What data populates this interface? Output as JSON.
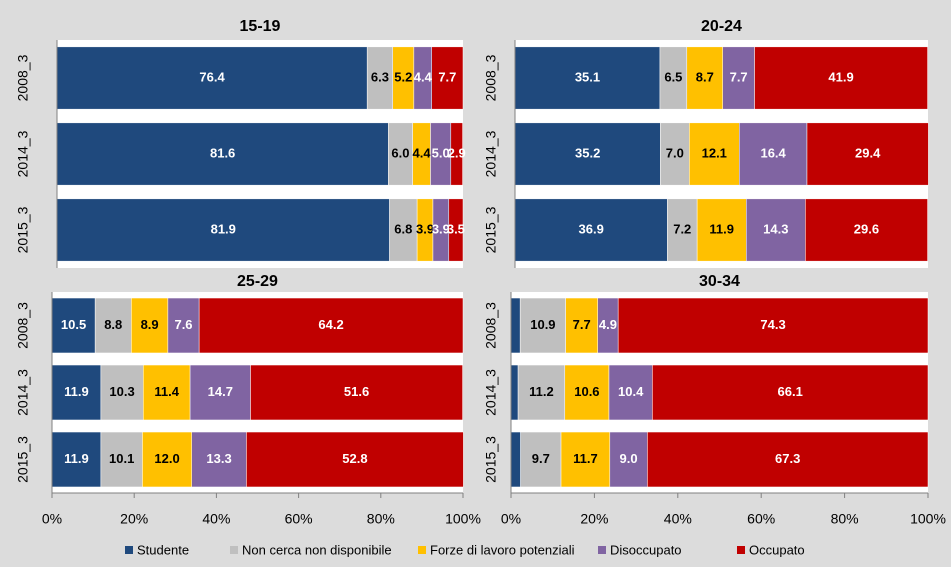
{
  "chart_data": [
    {
      "type": "stacked_barh",
      "title": "15-19",
      "categories": [
        "2008_3",
        "2014_3",
        "2015_3"
      ],
      "xlim": [
        0,
        100
      ],
      "series": [
        {
          "name": "Studente",
          "color": "#1f497d",
          "values": [
            76.4,
            81.6,
            81.9
          ],
          "value_labels": [
            "76.4",
            "81.6",
            "81.9"
          ]
        },
        {
          "name": "Non cerca non disponibile",
          "color": "#bfbfbf",
          "values": [
            6.3,
            6.0,
            6.8
          ],
          "value_labels": [
            "6.3",
            "6.0",
            "6.8"
          ]
        },
        {
          "name": "Forze di lavoro potenziali",
          "color": "#ffc000",
          "values": [
            5.2,
            4.4,
            3.9
          ],
          "value_labels": [
            "5.2",
            "4.4",
            "3.9"
          ]
        },
        {
          "name": "Disoccupato",
          "color": "#8064a2",
          "values": [
            4.4,
            5.0,
            3.9
          ],
          "value_labels": [
            "4.4",
            "5.0",
            "3.9"
          ]
        },
        {
          "name": "Occupato",
          "color": "#c00000",
          "values": [
            7.7,
            2.9,
            3.5
          ],
          "value_labels": [
            "7.7",
            "2.9",
            "3.5"
          ]
        }
      ]
    },
    {
      "type": "stacked_barh",
      "title": "20-24",
      "categories": [
        "2008_3",
        "2014_3",
        "2015_3"
      ],
      "xlim": [
        0,
        100
      ],
      "series": [
        {
          "color": "#1f497d",
          "values": [
            35.1,
            35.2,
            36.9
          ],
          "value_labels": [
            "35.1",
            "35.2",
            "36.9"
          ]
        },
        {
          "color": "#bfbfbf",
          "values": [
            6.5,
            7.0,
            7.2
          ],
          "value_labels": [
            "6.5",
            "7.0",
            "7.2"
          ]
        },
        {
          "color": "#ffc000",
          "values": [
            8.7,
            12.1,
            11.9
          ],
          "value_labels": [
            "8.7",
            "12.1",
            "11.9"
          ]
        },
        {
          "color": "#8064a2",
          "values": [
            7.7,
            16.4,
            14.3
          ],
          "value_labels": [
            "7.7",
            "16.4",
            "14.3"
          ]
        },
        {
          "color": "#c00000",
          "values": [
            41.9,
            29.4,
            29.6
          ],
          "value_labels": [
            "41.9",
            "29.4",
            "29.6"
          ]
        }
      ]
    },
    {
      "type": "stacked_barh",
      "title": "25-29",
      "categories": [
        "2008_3",
        "2014_3",
        "2015_3"
      ],
      "xlim": [
        0,
        100
      ],
      "xticks": [
        {
          "value": 0,
          "label": "0%"
        },
        {
          "value": 20,
          "label": "20%"
        },
        {
          "value": 40,
          "label": "40%"
        },
        {
          "value": 60,
          "label": "60%"
        },
        {
          "value": 80,
          "label": "80%"
        },
        {
          "value": 100,
          "label": "100%"
        }
      ],
      "series": [
        {
          "color": "#1f497d",
          "values": [
            10.5,
            11.9,
            11.9
          ],
          "value_labels": [
            "10.5",
            "11.9",
            "11.9"
          ]
        },
        {
          "color": "#bfbfbf",
          "values": [
            8.8,
            10.3,
            10.1
          ],
          "value_labels": [
            "8.8",
            "10.3",
            "10.1"
          ]
        },
        {
          "color": "#ffc000",
          "values": [
            8.9,
            11.4,
            12.0
          ],
          "value_labels": [
            "8.9",
            "11.4",
            "12.0"
          ]
        },
        {
          "color": "#8064a2",
          "values": [
            7.6,
            14.7,
            13.3
          ],
          "value_labels": [
            "7.6",
            "14.7",
            "13.3"
          ]
        },
        {
          "color": "#c00000",
          "values": [
            64.2,
            51.6,
            52.8
          ],
          "value_labels": [
            "64.2",
            "51.6",
            "52.8"
          ]
        }
      ]
    },
    {
      "type": "stacked_barh",
      "title": "30-34",
      "categories": [
        "2008_3",
        "2014_3",
        "2015_3"
      ],
      "xlim": [
        0,
        100
      ],
      "xticks": [
        {
          "value": 0,
          "label": "0%"
        },
        {
          "value": 20,
          "label": "20%"
        },
        {
          "value": 40,
          "label": "40%"
        },
        {
          "value": 60,
          "label": "60%"
        },
        {
          "value": 80,
          "label": "80%"
        },
        {
          "value": 100,
          "label": "100%"
        }
      ],
      "series": [
        {
          "color": "#1f497d",
          "values": [
            2.2,
            1.7,
            2.3
          ],
          "value_labels": [
            null,
            null,
            null
          ]
        },
        {
          "color": "#bfbfbf",
          "values": [
            10.9,
            11.2,
            9.7
          ],
          "value_labels": [
            "10.9",
            "11.2",
            "9.7"
          ]
        },
        {
          "color": "#ffc000",
          "values": [
            7.7,
            10.6,
            11.7
          ],
          "value_labels": [
            "7.7",
            "10.6",
            "11.7"
          ]
        },
        {
          "color": "#8064a2",
          "values": [
            4.9,
            10.4,
            9.0
          ],
          "value_labels": [
            "4.9",
            "10.4",
            "9.0"
          ]
        },
        {
          "color": "#c00000",
          "values": [
            74.3,
            66.1,
            67.3
          ],
          "value_labels": [
            "74.3",
            "66.1",
            "67.3"
          ]
        }
      ]
    }
  ]
}
